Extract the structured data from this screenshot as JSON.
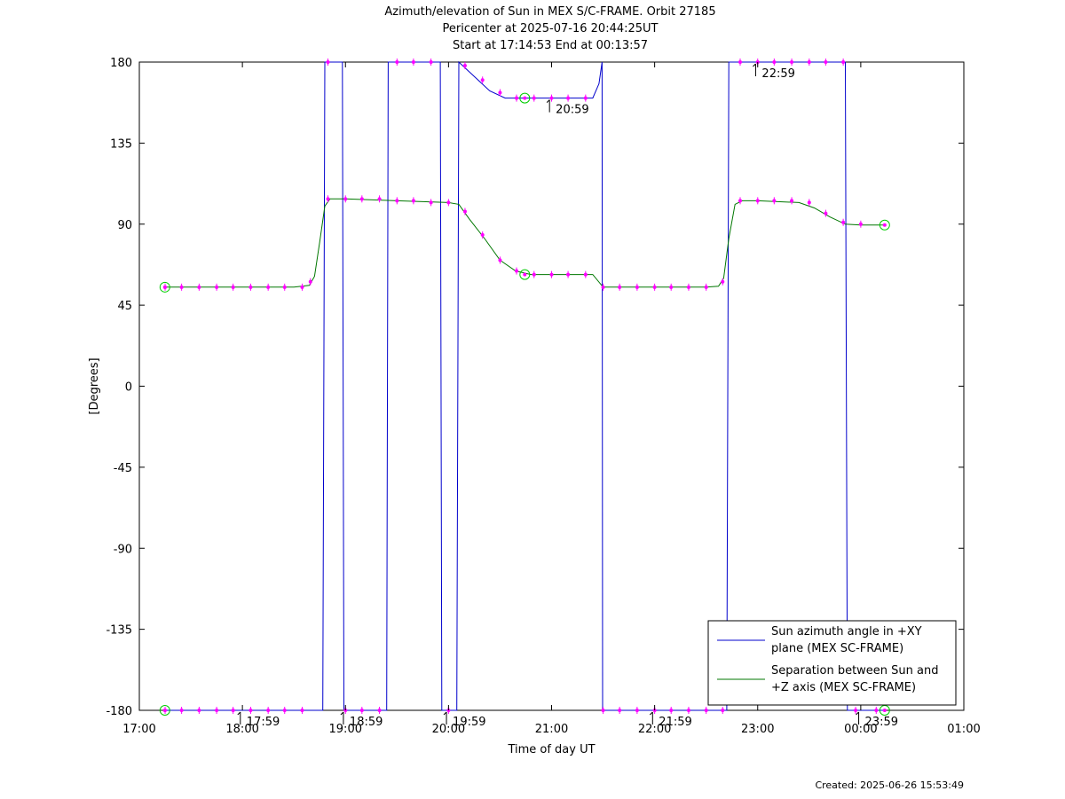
{
  "chart_data": {
    "type": "line",
    "title_lines": [
      "Azimuth/elevation of Sun in MEX S/C-FRAME.  Orbit 27185",
      "Pericenter at 2025-07-16 20:44:25UT",
      "Start at 17:14:53 End at 00:13:57"
    ],
    "xlabel": "Time of day UT",
    "ylabel": "[Degrees]",
    "xlim_hours": [
      17,
      25
    ],
    "ylim": [
      -180,
      180
    ],
    "x_ticks": [
      {
        "h": 17,
        "label": "17:00"
      },
      {
        "h": 18,
        "label": "18:00"
      },
      {
        "h": 19,
        "label": "19:00"
      },
      {
        "h": 20,
        "label": "20:00"
      },
      {
        "h": 21,
        "label": "21:00"
      },
      {
        "h": 22,
        "label": "22:00"
      },
      {
        "h": 23,
        "label": "23:00"
      },
      {
        "h": 24,
        "label": "00:00"
      },
      {
        "h": 25,
        "label": "01:00"
      }
    ],
    "y_ticks": [
      {
        "v": 180,
        "label": "180"
      },
      {
        "v": 135,
        "label": "135"
      },
      {
        "v": 90,
        "label": "90"
      },
      {
        "v": 45,
        "label": "45"
      },
      {
        "v": 0,
        "label": "0"
      },
      {
        "v": -45,
        "label": "-45"
      },
      {
        "v": -90,
        "label": "-90"
      },
      {
        "v": -135,
        "label": "-135"
      },
      {
        "v": -180,
        "label": "-180"
      }
    ],
    "grid": false,
    "legend_position": "bottom-right",
    "series": [
      {
        "name": "Sun azimuth angle in +XY plane (MEX SC-FRAME)",
        "legend_lines": [
          "Sun azimuth angle in +XY",
          "plane (MEX SC-FRAME)"
        ],
        "color": "#0000cc",
        "points": [
          [
            17.248,
            -180
          ],
          [
            18.78,
            -180
          ],
          [
            18.8,
            180
          ],
          [
            18.97,
            180
          ],
          [
            18.985,
            -180
          ],
          [
            19.4,
            -180
          ],
          [
            19.415,
            180
          ],
          [
            19.92,
            180
          ],
          [
            19.935,
            -180
          ],
          [
            20.08,
            -180
          ],
          [
            20.1,
            180
          ],
          [
            20.25,
            172
          ],
          [
            20.4,
            164
          ],
          [
            20.55,
            160
          ],
          [
            20.7,
            160
          ],
          [
            20.85,
            160
          ],
          [
            21.0,
            160
          ],
          [
            21.2,
            160
          ],
          [
            21.4,
            160
          ],
          [
            21.46,
            168
          ],
          [
            21.49,
            180
          ],
          [
            21.495,
            -180
          ],
          [
            22.7,
            -180
          ],
          [
            22.72,
            180
          ],
          [
            23.5,
            180
          ],
          [
            23.85,
            180
          ],
          [
            23.87,
            -180
          ],
          [
            24.232,
            -180
          ]
        ]
      },
      {
        "name": "Separation between Sun and +Z axis (MEX SC-FRAME)",
        "legend_lines": [
          "Separation between Sun and",
          "+Z axis (MEX SC-FRAME)"
        ],
        "color": "#007700",
        "points": [
          [
            17.248,
            55
          ],
          [
            17.5,
            55
          ],
          [
            18.0,
            55
          ],
          [
            18.5,
            55
          ],
          [
            18.65,
            56
          ],
          [
            18.7,
            61
          ],
          [
            18.75,
            80
          ],
          [
            18.8,
            100
          ],
          [
            18.85,
            104
          ],
          [
            19.0,
            104
          ],
          [
            19.5,
            103
          ],
          [
            20.0,
            102
          ],
          [
            20.1,
            101
          ],
          [
            20.2,
            93
          ],
          [
            20.35,
            82
          ],
          [
            20.5,
            70
          ],
          [
            20.65,
            64
          ],
          [
            20.8,
            62
          ],
          [
            21.0,
            62
          ],
          [
            21.4,
            62
          ],
          [
            21.5,
            55
          ],
          [
            22.0,
            55
          ],
          [
            22.5,
            55
          ],
          [
            22.62,
            55.5
          ],
          [
            22.67,
            60
          ],
          [
            22.72,
            82
          ],
          [
            22.78,
            101
          ],
          [
            22.85,
            103
          ],
          [
            23.0,
            103
          ],
          [
            23.4,
            102
          ],
          [
            23.55,
            99
          ],
          [
            23.7,
            94
          ],
          [
            23.85,
            90
          ],
          [
            24.0,
            89.5
          ],
          [
            24.232,
            89.5
          ]
        ]
      }
    ],
    "marker_points": [
      [
        17.25,
        55
      ],
      [
        17.41,
        55
      ],
      [
        17.58,
        55
      ],
      [
        17.75,
        55
      ],
      [
        17.91,
        55
      ],
      [
        18.08,
        55
      ],
      [
        18.25,
        55
      ],
      [
        18.41,
        55
      ],
      [
        18.58,
        55
      ],
      [
        18.66,
        58
      ],
      [
        18.83,
        104
      ],
      [
        19.0,
        104
      ],
      [
        19.16,
        104
      ],
      [
        19.33,
        104
      ],
      [
        19.5,
        103
      ],
      [
        19.66,
        103
      ],
      [
        19.83,
        102
      ],
      [
        20.0,
        102
      ],
      [
        20.16,
        97
      ],
      [
        20.33,
        84
      ],
      [
        20.5,
        70
      ],
      [
        20.66,
        64
      ],
      [
        20.83,
        62
      ],
      [
        21.0,
        62
      ],
      [
        21.16,
        62
      ],
      [
        21.33,
        62
      ],
      [
        21.5,
        55
      ],
      [
        21.66,
        55
      ],
      [
        21.83,
        55
      ],
      [
        22.0,
        55
      ],
      [
        22.16,
        55
      ],
      [
        22.33,
        55
      ],
      [
        22.5,
        55
      ],
      [
        22.66,
        58
      ],
      [
        22.83,
        103
      ],
      [
        23.0,
        103
      ],
      [
        23.16,
        103
      ],
      [
        23.33,
        103
      ],
      [
        23.5,
        102
      ],
      [
        23.66,
        96
      ],
      [
        23.83,
        91
      ],
      [
        24.0,
        90
      ],
      [
        17.25,
        -180
      ],
      [
        17.41,
        -180
      ],
      [
        17.58,
        -180
      ],
      [
        17.75,
        -180
      ],
      [
        17.91,
        -180
      ],
      [
        18.08,
        -180
      ],
      [
        18.25,
        -180
      ],
      [
        18.41,
        -180
      ],
      [
        18.58,
        -180
      ],
      [
        19.0,
        -180
      ],
      [
        19.16,
        -180
      ],
      [
        19.33,
        -180
      ],
      [
        20.0,
        -180
      ],
      [
        21.5,
        -180
      ],
      [
        21.66,
        -180
      ],
      [
        21.83,
        -180
      ],
      [
        22.0,
        -180
      ],
      [
        22.16,
        -180
      ],
      [
        22.33,
        -180
      ],
      [
        22.5,
        -180
      ],
      [
        22.66,
        -180
      ],
      [
        23.95,
        -180
      ],
      [
        24.15,
        -180
      ],
      [
        18.83,
        180
      ],
      [
        19.5,
        180
      ],
      [
        19.66,
        180
      ],
      [
        19.83,
        180
      ],
      [
        20.16,
        178
      ],
      [
        20.33,
        170
      ],
      [
        20.5,
        163
      ],
      [
        20.66,
        160
      ],
      [
        20.83,
        160
      ],
      [
        21.0,
        160
      ],
      [
        21.16,
        160
      ],
      [
        21.33,
        160
      ],
      [
        22.83,
        180
      ],
      [
        23.0,
        180
      ],
      [
        23.16,
        180
      ],
      [
        23.33,
        180
      ],
      [
        23.5,
        180
      ],
      [
        23.66,
        180
      ],
      [
        23.83,
        180
      ]
    ],
    "circle_markers": [
      [
        17.248,
        55
      ],
      [
        17.248,
        -180
      ],
      [
        20.74,
        160
      ],
      [
        20.74,
        62
      ],
      [
        24.232,
        89.5
      ],
      [
        24.232,
        -180
      ]
    ],
    "hour_ticks": [
      {
        "h": 17.98,
        "v": -180,
        "label": "17:59"
      },
      {
        "h": 18.98,
        "v": -180,
        "label": "18:59"
      },
      {
        "h": 19.98,
        "v": -180,
        "label": "19:59"
      },
      {
        "h": 20.98,
        "v": 160,
        "label": "20:59"
      },
      {
        "h": 21.98,
        "v": -180,
        "label": "21:59"
      },
      {
        "h": 22.98,
        "v": 180,
        "label": "22:59"
      },
      {
        "h": 23.98,
        "v": -180,
        "label": "23:59"
      }
    ],
    "created": "Created: 2025-06-26 15:53:49"
  }
}
